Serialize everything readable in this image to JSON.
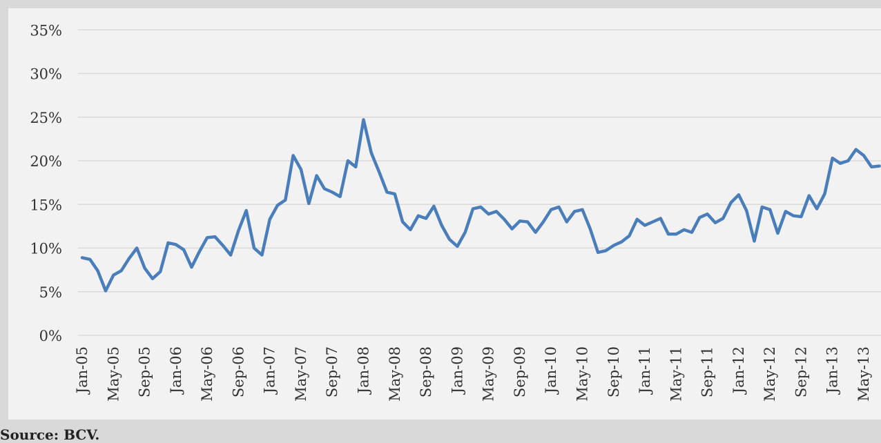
{
  "chart_data": {
    "type": "line",
    "title": "",
    "xlabel": "",
    "ylabel": "",
    "ylim": [
      0,
      35
    ],
    "y_ticks": [
      "0%",
      "5%",
      "10%",
      "15%",
      "20%",
      "25%",
      "30%",
      "35%"
    ],
    "x_tick_labels": [
      "Jan-05",
      "May-05",
      "Sep-05",
      "Jan-06",
      "May-06",
      "Sep-06",
      "Jan-07",
      "May-07",
      "Sep-07",
      "Jan-08",
      "May-08",
      "Sep-08",
      "Jan-09",
      "May-09",
      "Sep-09",
      "Jan-10",
      "May-10",
      "Sep-10",
      "Jan-11",
      "May-11",
      "Sep-11",
      "Jan-12",
      "May-12",
      "Sep-12",
      "Jan-13",
      "May-13"
    ],
    "grid": true,
    "line_color": "#4a7ebb",
    "series": [
      {
        "x": [
          "Jan-05",
          "Feb-05",
          "Mar-05",
          "Apr-05",
          "May-05",
          "Jun-05",
          "Jul-05",
          "Aug-05",
          "Sep-05",
          "Oct-05",
          "Nov-05",
          "Dec-05",
          "Jan-06",
          "Feb-06",
          "Mar-06",
          "Apr-06",
          "May-06",
          "Jun-06",
          "Jul-06",
          "Aug-06",
          "Sep-06",
          "Oct-06",
          "Nov-06",
          "Dec-06",
          "Jan-07",
          "Feb-07",
          "Mar-07",
          "Apr-07",
          "May-07",
          "Jun-07",
          "Jul-07",
          "Aug-07",
          "Sep-07",
          "Oct-07",
          "Nov-07",
          "Dec-07",
          "Jan-08",
          "Feb-08",
          "Mar-08",
          "Apr-08",
          "May-08",
          "Jun-08",
          "Jul-08",
          "Aug-08",
          "Sep-08",
          "Oct-08",
          "Nov-08",
          "Dec-08",
          "Jan-09",
          "Feb-09",
          "Mar-09",
          "Apr-09",
          "May-09",
          "Jun-09",
          "Jul-09",
          "Aug-09",
          "Sep-09",
          "Oct-09",
          "Nov-09",
          "Dec-09",
          "Jan-10",
          "Feb-10",
          "Mar-10",
          "Apr-10",
          "May-10",
          "Jun-10",
          "Jul-10",
          "Aug-10",
          "Sep-10",
          "Oct-10",
          "Nov-10",
          "Dec-10",
          "Jan-11",
          "Feb-11",
          "Mar-11",
          "Apr-11",
          "May-11",
          "Jun-11",
          "Jul-11",
          "Aug-11",
          "Sep-11",
          "Oct-11",
          "Nov-11",
          "Dec-11",
          "Jan-12",
          "Feb-12",
          "Mar-12",
          "Apr-12",
          "May-12",
          "Jun-12",
          "Jul-12",
          "Aug-12",
          "Sep-12",
          "Oct-12",
          "Nov-12",
          "Dec-12",
          "Jan-13",
          "Feb-13",
          "Mar-13",
          "Apr-13",
          "May-13",
          "Jun-13",
          "Jul-13"
        ],
        "values": [
          8.9,
          8.7,
          7.4,
          5.1,
          6.9,
          7.4,
          8.8,
          10.0,
          7.7,
          6.5,
          7.3,
          10.6,
          10.4,
          9.8,
          7.8,
          9.6,
          11.2,
          11.3,
          10.3,
          9.2,
          12.0,
          14.3,
          10.0,
          9.2,
          13.3,
          14.9,
          15.5,
          20.6,
          19.0,
          15.1,
          18.3,
          16.8,
          16.4,
          15.9,
          20.0,
          19.3,
          24.7,
          20.9,
          18.7,
          16.4,
          16.2,
          13.0,
          12.1,
          13.7,
          13.4,
          14.8,
          12.6,
          11.0,
          10.2,
          11.8,
          14.5,
          14.7,
          13.9,
          14.2,
          13.3,
          12.2,
          13.1,
          13.0,
          11.8,
          13.0,
          14.4,
          14.7,
          13.0,
          14.2,
          14.4,
          12.2,
          9.5,
          9.7,
          10.3,
          10.7,
          11.4,
          13.3,
          12.6,
          13.0,
          13.4,
          11.6,
          11.6,
          12.1,
          11.8,
          13.5,
          13.9,
          12.9,
          13.4,
          15.2,
          16.1,
          14.3,
          10.8,
          14.7,
          14.4,
          11.7,
          14.2,
          13.7,
          13.6,
          16.0,
          14.5,
          16.2,
          20.3,
          19.7,
          20.0,
          21.3,
          20.6,
          19.3,
          19.4
        ]
      }
    ]
  },
  "source_note": "Source: BCV."
}
